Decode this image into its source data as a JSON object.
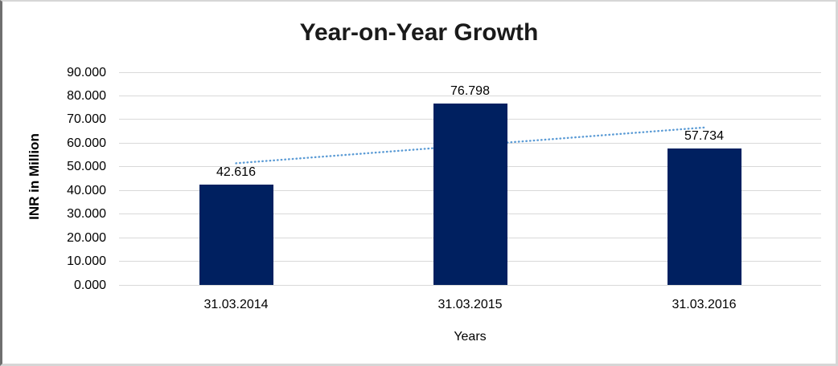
{
  "chart_data": {
    "type": "bar",
    "title": "Year-on-Year Growth",
    "categories": [
      "31.03.2014",
      "31.03.2015",
      "31.03.2016"
    ],
    "values": [
      42.616,
      76.798,
      57.734
    ],
    "data_labels": [
      "42.616",
      "76.798",
      "57.734"
    ],
    "xlabel": "Years",
    "ylabel": "INR in Million",
    "ylim": [
      0,
      90
    ],
    "ytick_step": 10,
    "ytick_labels": [
      "0.000",
      "10.000",
      "20.000",
      "30.000",
      "40.000",
      "50.000",
      "60.000",
      "70.000",
      "80.000",
      "90.000"
    ],
    "grid": true,
    "legend": "none",
    "trendline": {
      "type": "linear",
      "style": "dotted"
    },
    "colors": {
      "bar": "#002060",
      "trendline": "#5B9BD5",
      "gridline": "#D9D9D9",
      "title_text": "#1a1a1a",
      "axis_text": "#000000"
    }
  }
}
